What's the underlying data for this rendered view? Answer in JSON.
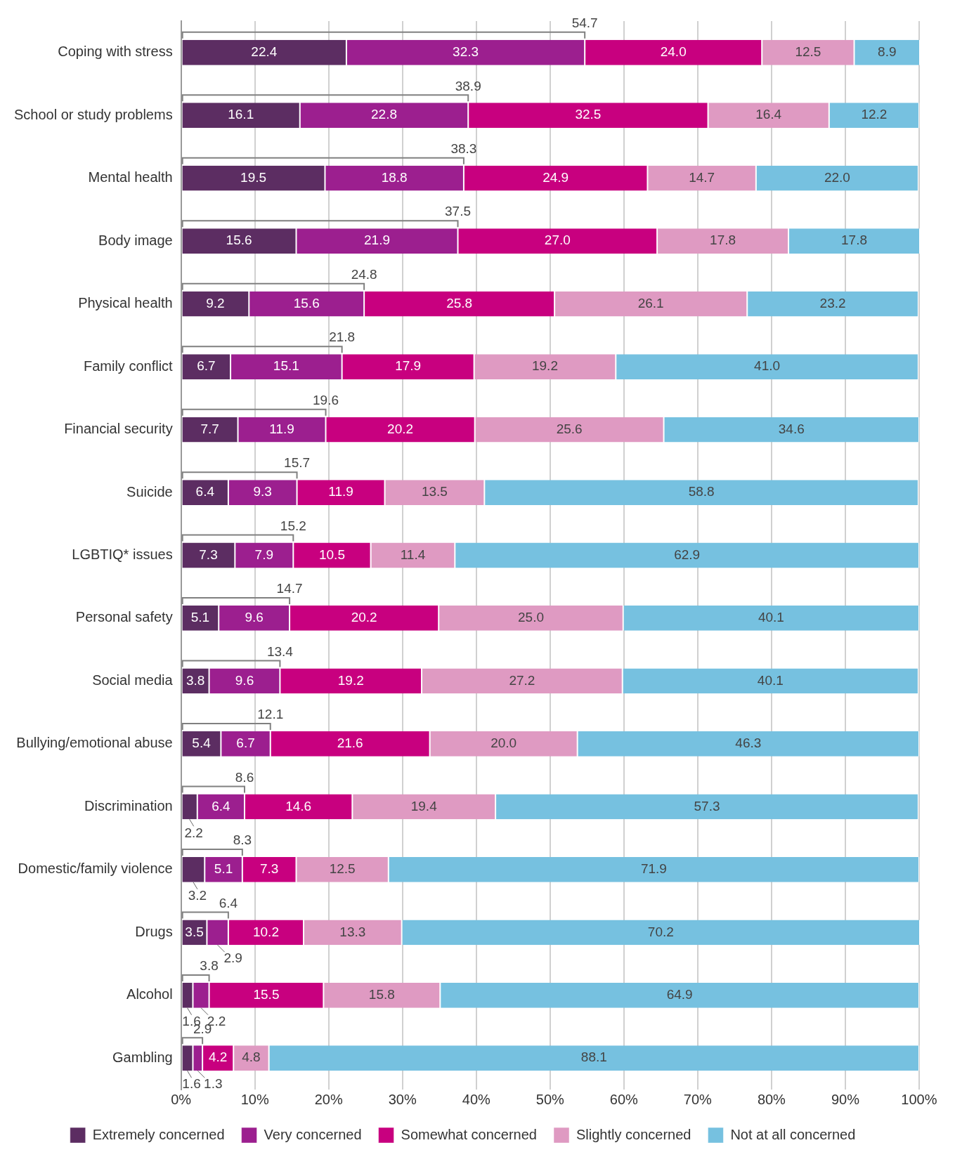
{
  "chart_data": {
    "type": "bar",
    "orientation": "horizontal",
    "stacked": true,
    "grid": "x",
    "legend": "bottom",
    "categories": [
      "Coping with stress",
      "School or study problems",
      "Mental health",
      "Body image",
      "Physical health",
      "Family conflict",
      "Financial security",
      "Suicide",
      "LGBTIQ* issues",
      "Personal safety",
      "Social media",
      "Bullying/emotional abuse",
      "Discrimination",
      "Domestic/family violence",
      "Drugs",
      "Alcohol",
      "Gambling"
    ],
    "series": [
      {
        "name": "Extremely concerned",
        "color": "#5c2d62",
        "values": [
          22.4,
          16.1,
          19.5,
          15.6,
          9.2,
          6.7,
          7.7,
          6.4,
          7.3,
          5.1,
          3.8,
          5.4,
          2.2,
          3.2,
          3.5,
          1.6,
          1.6
        ],
        "value_labels": [
          "22.4",
          "16.1",
          "19.5",
          "15.6",
          "9.2",
          "6.7",
          "7.7",
          "6.4",
          "7.3",
          "5.1",
          "3.8",
          "5.4",
          "2.2",
          "3.2",
          "3.5",
          "1.6",
          "1.6"
        ]
      },
      {
        "name": "Very concerned",
        "color": "#9c1f8f",
        "values": [
          32.3,
          22.8,
          18.8,
          21.9,
          15.6,
          15.1,
          11.9,
          9.3,
          7.9,
          9.6,
          9.6,
          6.7,
          6.4,
          5.1,
          2.9,
          2.2,
          1.3
        ],
        "value_labels": [
          "32.3",
          "22.8",
          "18.8",
          "21.9",
          "15.6",
          "15.1",
          "11.9",
          "9.3",
          "7.9",
          "9.6",
          "9.6",
          "6.7",
          "6.4",
          "5.1",
          "2.9",
          "2.2",
          "1.3"
        ]
      },
      {
        "name": "Somewhat concerned",
        "color": "#c8007f",
        "values": [
          24.0,
          32.5,
          24.9,
          27.0,
          25.8,
          17.9,
          20.2,
          11.9,
          10.5,
          20.2,
          19.2,
          21.6,
          14.6,
          7.3,
          10.2,
          15.5,
          4.2
        ],
        "value_labels": [
          "24.0",
          "32.5",
          "24.9",
          "27.0",
          "25.8",
          "17.9",
          "20.2",
          "11.9",
          "10.5",
          "20.2",
          "19.2",
          "21.6",
          "14.6",
          "7.3",
          "10.2",
          "15.5",
          "4.2"
        ]
      },
      {
        "name": "Slightly concerned",
        "color": "#df9ac2",
        "values": [
          12.5,
          16.4,
          14.7,
          17.8,
          26.1,
          19.2,
          25.6,
          13.5,
          11.4,
          25.0,
          27.2,
          20.0,
          19.4,
          12.5,
          13.3,
          15.8,
          4.8
        ],
        "value_labels": [
          "12.5",
          "16.4",
          "14.7",
          "17.8",
          "26.1",
          "19.2",
          "25.6",
          "13.5",
          "11.4",
          "25.0",
          "27.2",
          "20.0",
          "19.4",
          "12.5",
          "13.3",
          "15.8",
          "4.8"
        ]
      },
      {
        "name": "Not at all concerned",
        "color": "#76c1e0",
        "values": [
          8.9,
          12.2,
          22.0,
          17.8,
          23.2,
          41.0,
          34.6,
          58.8,
          62.9,
          40.1,
          40.1,
          46.3,
          57.3,
          71.9,
          70.2,
          64.9,
          88.1
        ],
        "value_labels": [
          "8.9",
          "12.2",
          "22.0",
          "17.8",
          "23.2",
          "41.0",
          "34.6",
          "58.8",
          "62.9",
          "40.1",
          "40.1",
          "46.3",
          "57.3",
          "71.9",
          "70.2",
          "64.9",
          "88.1"
        ]
      }
    ],
    "xlim": [
      0,
      100.1
    ],
    "xticks": [
      {
        "value": 0,
        "label": "0%"
      },
      {
        "value": 10,
        "label": "10%"
      },
      {
        "value": 20,
        "label": "20%"
      },
      {
        "value": 30,
        "label": "30%"
      },
      {
        "value": 40,
        "label": "40%"
      },
      {
        "value": 50,
        "label": "50%"
      },
      {
        "value": 60,
        "label": "60%"
      },
      {
        "value": 70,
        "label": "70%"
      },
      {
        "value": 80,
        "label": "80%"
      },
      {
        "value": 90,
        "label": "90%"
      },
      {
        "value": 100,
        "label": "100%"
      }
    ],
    "annotations": [
      {
        "text": "54.7",
        "x": 54.7,
        "y": "Coping with stress"
      },
      {
        "text": "38.9",
        "x": 38.9,
        "y": "School or study problems"
      },
      {
        "text": "38.3",
        "x": 38.3,
        "y": "Mental health"
      },
      {
        "text": "37.5",
        "x": 37.5,
        "y": "Body image"
      },
      {
        "text": "24.8",
        "x": 24.8,
        "y": "Physical health"
      },
      {
        "text": "21.8",
        "x": 21.8,
        "y": "Family conflict"
      },
      {
        "text": "19.6",
        "x": 19.6,
        "y": "Financial security"
      },
      {
        "text": "15.7",
        "x": 15.7,
        "y": "Suicide"
      },
      {
        "text": "15.2",
        "x": 15.2,
        "y": "LGBTIQ* issues"
      },
      {
        "text": "14.7",
        "x": 14.7,
        "y": "Personal safety"
      },
      {
        "text": "13.4",
        "x": 13.4,
        "y": "Social media"
      },
      {
        "text": "12.1",
        "x": 12.1,
        "y": "Bullying/emotional abuse"
      },
      {
        "text": "8.6",
        "x": 8.6,
        "y": "Discrimination"
      },
      {
        "text": "8.3",
        "x": 8.3,
        "y": "Domestic/family violence"
      },
      {
        "text": "6.4",
        "x": 6.4,
        "y": "Drugs"
      },
      {
        "text": "3.8",
        "x": 3.8,
        "y": "Alcohol"
      },
      {
        "text": "2.9",
        "x": 2.9,
        "y": "Gambling"
      }
    ]
  }
}
